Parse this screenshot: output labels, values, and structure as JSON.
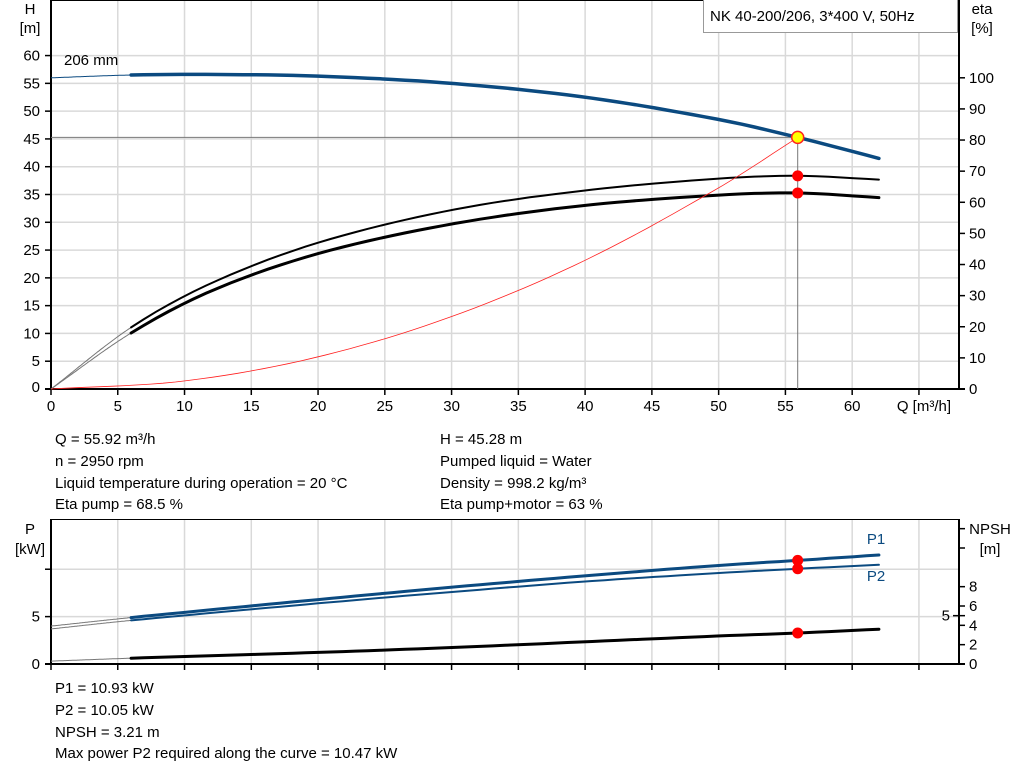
{
  "chart_data": [
    {
      "type": "line",
      "title": "NK 40-200/206, 3*400 V, 50Hz",
      "xlabel": "Q [m³/h]",
      "ylabel_left": [
        "H",
        "[m]"
      ],
      "ylabel_right": [
        "eta",
        "[%]"
      ],
      "xlim": [
        0,
        68
      ],
      "ylim_left": [
        0,
        70
      ],
      "ylim_right": [
        0,
        125
      ],
      "x_ticks": [
        0,
        5,
        10,
        15,
        20,
        25,
        30,
        35,
        40,
        45,
        50,
        55,
        60
      ],
      "y_ticks_left": [
        0,
        5,
        10,
        15,
        20,
        25,
        30,
        35,
        40,
        45,
        50,
        55,
        60
      ],
      "y_ticks_right": [
        0,
        10,
        20,
        30,
        40,
        50,
        60,
        70,
        80,
        90,
        100
      ],
      "grid": true,
      "operating_range": [
        6,
        62
      ],
      "curve_label": "206 mm",
      "series": [
        {
          "key": "H",
          "axis": "left",
          "color": "#0b4a80",
          "points": [
            [
              0,
              56
            ],
            [
              6,
              56.5
            ],
            [
              12,
              56.6
            ],
            [
              20,
              56.3
            ],
            [
              30,
              55
            ],
            [
              40,
              52.5
            ],
            [
              50,
              48.5
            ],
            [
              55.92,
              45.28
            ],
            [
              62,
              41.5
            ]
          ]
        },
        {
          "key": "eta_pump",
          "axis": "right",
          "color": "#000000",
          "points": [
            [
              0,
              0
            ],
            [
              6,
              19.8
            ],
            [
              12,
              34
            ],
            [
              20,
              47
            ],
            [
              30,
              57.5
            ],
            [
              40,
              63.8
            ],
            [
              50,
              67.6
            ],
            [
              55.92,
              68.5
            ],
            [
              62,
              67.3
            ]
          ]
        },
        {
          "key": "eta_pump_motor",
          "axis": "right",
          "color": "#000000",
          "points": [
            [
              0,
              0
            ],
            [
              6,
              18
            ],
            [
              12,
              31.5
            ],
            [
              20,
              43.5
            ],
            [
              30,
              53
            ],
            [
              40,
              59
            ],
            [
              50,
              62.3
            ],
            [
              55.92,
              63
            ],
            [
              62,
              61.5
            ]
          ]
        },
        {
          "key": "system",
          "axis": "left",
          "color": "#ff2020",
          "points": [
            [
              0,
              0
            ],
            [
              10,
              1.45
            ],
            [
              20,
              5.79
            ],
            [
              30,
              13.03
            ],
            [
              40,
              23.17
            ],
            [
              50,
              36.2
            ],
            [
              55.92,
              45.28
            ]
          ]
        }
      ],
      "duty_point": {
        "Q": 55.92,
        "H": 45.28,
        "eta_pump": 68.5,
        "eta_pump_motor": 63
      }
    },
    {
      "type": "line",
      "ylabel_left": [
        "P",
        "[kW]"
      ],
      "ylabel_right": [
        "NPSH",
        "[m]"
      ],
      "xlim": [
        0,
        68
      ],
      "ylim_left": [
        0,
        15.3
      ],
      "ylim_right": [
        0,
        15
      ],
      "y_ticks_left": [
        0,
        5
      ],
      "y_ticks_left_unlabeled": [
        10
      ],
      "y_ticks_right": [
        0,
        2,
        4,
        5,
        6,
        8
      ],
      "grid": true,
      "series": [
        {
          "name": "P1",
          "axis": "left",
          "color": "#0b4a80",
          "points": [
            [
              0,
              4.0
            ],
            [
              6,
              4.9
            ],
            [
              20,
              6.8
            ],
            [
              30,
              8.1
            ],
            [
              40,
              9.3
            ],
            [
              50,
              10.4
            ],
            [
              55.92,
              10.93
            ],
            [
              62,
              11.5
            ]
          ]
        },
        {
          "name": "P2",
          "axis": "left",
          "color": "#0b4a80",
          "points": [
            [
              0,
              3.7
            ],
            [
              6,
              4.6
            ],
            [
              20,
              6.4
            ],
            [
              30,
              7.6
            ],
            [
              40,
              8.7
            ],
            [
              50,
              9.6
            ],
            [
              55.92,
              10.05
            ],
            [
              62,
              10.47
            ]
          ]
        },
        {
          "key": "NPSH",
          "axis": "right",
          "color": "#000000",
          "points": [
            [
              0,
              0.3
            ],
            [
              6,
              0.6
            ],
            [
              20,
              1.2
            ],
            [
              30,
              1.7
            ],
            [
              40,
              2.3
            ],
            [
              50,
              2.9
            ],
            [
              55.92,
              3.21
            ],
            [
              62,
              3.6
            ]
          ]
        }
      ],
      "duty_point": {
        "Q": 55.92,
        "P1": 10.93,
        "P2": 10.05,
        "NPSH": 3.21
      }
    }
  ],
  "info_top": {
    "q": "Q = 55.92 m³/h",
    "n": "n = 2950 rpm",
    "temp": "Liquid temperature during operation = 20 °C",
    "eta_pump": "Eta pump = 68.5 %",
    "h": "H = 45.28 m",
    "liquid": "Pumped liquid = Water",
    "density": "Density = 998.2 kg/m³",
    "eta_total": "Eta pump+motor = 63 %"
  },
  "info_bottom": {
    "p1": "P1 = 10.93 kW",
    "p2": "P2 = 10.05 kW",
    "npsh": "NPSH = 3.21 m",
    "max_p2": "Max power P2 required along the curve = 10.47 kW"
  }
}
